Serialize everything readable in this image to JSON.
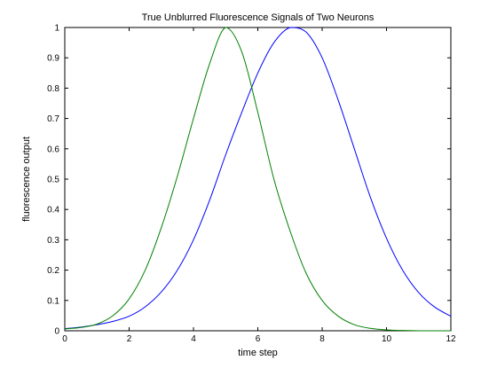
{
  "chart_data": {
    "type": "line",
    "title": "True Unblurred Fluorescence Signals of Two Neurons",
    "xlabel": "time step",
    "ylabel": "fluorescence output",
    "xlim": [
      0,
      12
    ],
    "ylim": [
      0,
      1
    ],
    "xticks": [
      0,
      2,
      4,
      6,
      8,
      10,
      12
    ],
    "xtick_labels": [
      "0",
      "2",
      "4",
      "6",
      "8",
      "10",
      "12"
    ],
    "yticks": [
      0,
      0.1,
      0.2,
      0.3,
      0.4,
      0.5,
      0.6,
      0.7,
      0.8,
      0.9,
      1
    ],
    "ytick_labels": [
      "0",
      "0.1",
      "0.2",
      "0.3",
      "0.4",
      "0.5",
      "0.6",
      "0.7",
      "0.8",
      "0.9",
      "1"
    ],
    "grid": false,
    "legend": "none",
    "x": [
      0,
      0.5,
      1,
      1.5,
      2,
      2.5,
      3,
      3.5,
      4,
      4.5,
      5,
      5.5,
      6,
      6.5,
      7,
      7.5,
      8,
      8.5,
      9,
      9.5,
      10,
      10.5,
      11,
      11.5,
      12
    ],
    "series": [
      {
        "color": "#0000ff",
        "values": [
          0.007,
          0.012,
          0.02,
          0.031,
          0.048,
          0.079,
          0.128,
          0.2,
          0.3,
          0.43,
          0.58,
          0.72,
          0.85,
          0.95,
          1.0,
          0.985,
          0.9,
          0.76,
          0.6,
          0.44,
          0.305,
          0.2,
          0.126,
          0.078,
          0.048
        ]
      },
      {
        "color": "#008000",
        "values": [
          0.006,
          0.011,
          0.022,
          0.05,
          0.105,
          0.2,
          0.34,
          0.51,
          0.7,
          0.88,
          1.0,
          0.92,
          0.72,
          0.5,
          0.33,
          0.19,
          0.1,
          0.048,
          0.02,
          0.008,
          0.003,
          0.001,
          0.0,
          0.0,
          0.0
        ]
      }
    ]
  }
}
